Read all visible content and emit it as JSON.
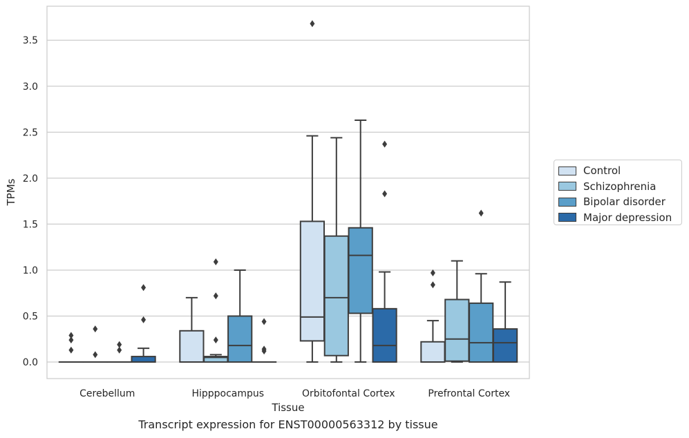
{
  "chart_data": {
    "type": "box",
    "caption": "Transcript expression for ENST00000563312 by tissue",
    "xlabel": "Tissue",
    "ylabel": "TPMs",
    "ylim": [
      -0.18,
      3.87
    ],
    "yticks": [
      "0.0",
      "0.5",
      "1.0",
      "1.5",
      "2.0",
      "2.5",
      "3.0",
      "3.5"
    ],
    "grid": true,
    "legend_position": "right",
    "categories": [
      "Cerebellum",
      "Hipppocampus",
      "Orbitofontal Cortex",
      "Prefrontal Cortex"
    ],
    "series": [
      {
        "name": "Control",
        "color": "#d1e2f2",
        "boxes": [
          {
            "whisker_low": 0,
            "q1": 0,
            "median": 0,
            "q3": 0,
            "whisker_high": 0,
            "outliers": [
              0.13,
              0.24,
              0.29
            ]
          },
          {
            "whisker_low": 0,
            "q1": 0,
            "median": 0,
            "q3": 0.34,
            "whisker_high": 0.7,
            "outliers": []
          },
          {
            "whisker_low": 0,
            "q1": 0.23,
            "median": 0.49,
            "q3": 1.53,
            "whisker_high": 2.46,
            "outliers": [
              3.68
            ]
          },
          {
            "whisker_low": 0,
            "q1": 0,
            "median": 0,
            "q3": 0.22,
            "whisker_high": 0.45,
            "outliers": [
              0.84,
              0.97
            ]
          }
        ]
      },
      {
        "name": "Schizophrenia",
        "color": "#9ac8e0",
        "boxes": [
          {
            "whisker_low": 0,
            "q1": 0,
            "median": 0,
            "q3": 0,
            "whisker_high": 0,
            "outliers": [
              0.08,
              0.36
            ]
          },
          {
            "whisker_low": 0,
            "q1": 0,
            "median": 0.05,
            "q3": 0.06,
            "whisker_high": 0.08,
            "outliers": [
              0.24,
              0.72,
              1.09
            ]
          },
          {
            "whisker_low": 0,
            "q1": 0.07,
            "median": 0.7,
            "q3": 1.37,
            "whisker_high": 2.44,
            "outliers": []
          },
          {
            "whisker_low": 0,
            "q1": 0.01,
            "median": 0.25,
            "q3": 0.68,
            "whisker_high": 1.1,
            "outliers": []
          }
        ]
      },
      {
        "name": "Bipolar disorder",
        "color": "#5a9ec9",
        "boxes": [
          {
            "whisker_low": 0,
            "q1": 0,
            "median": 0,
            "q3": 0,
            "whisker_high": 0,
            "outliers": [
              0.13,
              0.19
            ]
          },
          {
            "whisker_low": 0,
            "q1": 0,
            "median": 0.18,
            "q3": 0.5,
            "whisker_high": 1.0,
            "outliers": []
          },
          {
            "whisker_low": 0,
            "q1": 0.53,
            "median": 1.16,
            "q3": 1.46,
            "whisker_high": 2.63,
            "outliers": []
          },
          {
            "whisker_low": 0,
            "q1": 0,
            "median": 0.21,
            "q3": 0.64,
            "whisker_high": 0.96,
            "outliers": [
              1.62
            ]
          }
        ]
      },
      {
        "name": "Major depression",
        "color": "#2b6aa8",
        "boxes": [
          {
            "whisker_low": 0,
            "q1": 0,
            "median": 0,
            "q3": 0.06,
            "whisker_high": 0.15,
            "outliers": [
              0.46,
              0.81
            ]
          },
          {
            "whisker_low": 0,
            "q1": 0,
            "median": 0,
            "q3": 0,
            "whisker_high": 0,
            "outliers": [
              0.12,
              0.14,
              0.44
            ]
          },
          {
            "whisker_low": 0,
            "q1": 0,
            "median": 0.18,
            "q3": 0.58,
            "whisker_high": 0.98,
            "outliers": [
              1.83,
              2.37
            ]
          },
          {
            "whisker_low": 0,
            "q1": 0,
            "median": 0.21,
            "q3": 0.36,
            "whisker_high": 0.87,
            "outliers": []
          }
        ]
      }
    ]
  }
}
